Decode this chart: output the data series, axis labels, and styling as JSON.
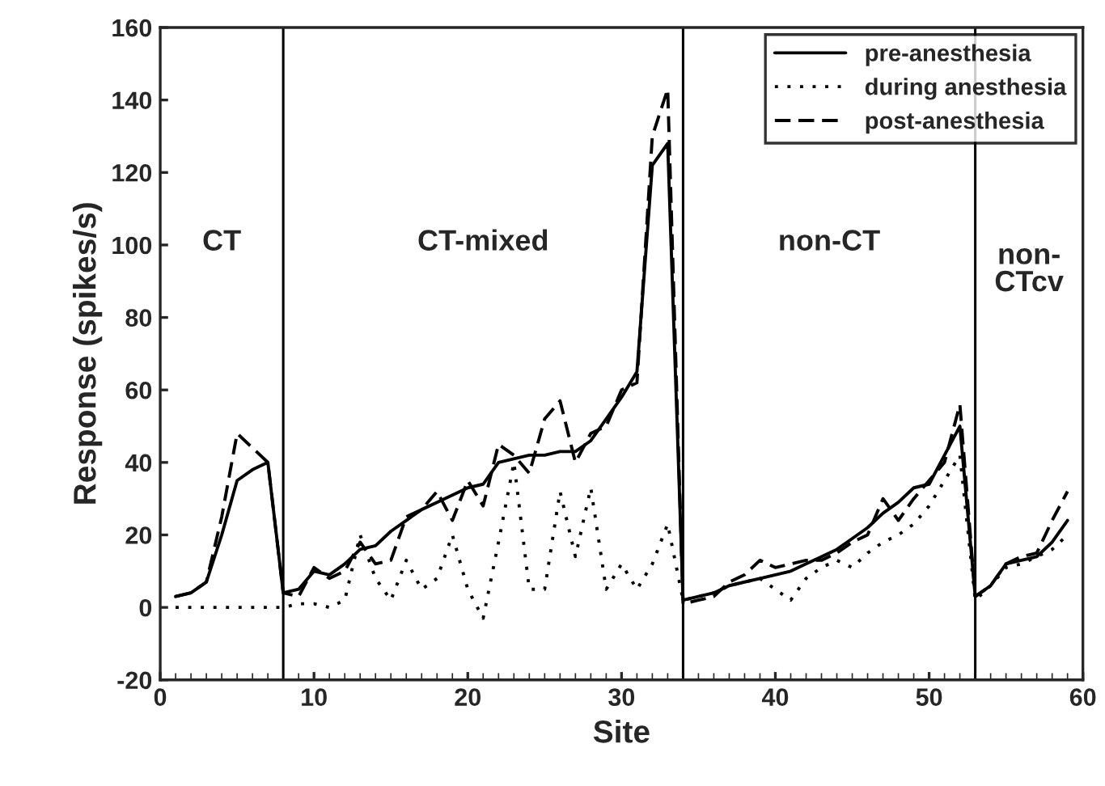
{
  "chart_data": {
    "type": "line",
    "xlabel": "Site",
    "ylabel": "Response (spikes/s)",
    "x": [
      1,
      2,
      3,
      4,
      5,
      6,
      7,
      8,
      9,
      10,
      11,
      12,
      13,
      14,
      15,
      16,
      17,
      18,
      19,
      20,
      21,
      22,
      23,
      24,
      25,
      26,
      27,
      28,
      29,
      30,
      31,
      32,
      33,
      34,
      35,
      36,
      37,
      38,
      39,
      40,
      41,
      42,
      43,
      44,
      45,
      46,
      47,
      48,
      49,
      50,
      51,
      52,
      53,
      54,
      55,
      56,
      57,
      58,
      59
    ],
    "series": [
      {
        "name": "pre-anesthesia",
        "color": "#000000",
        "line_style": "solid",
        "values": [
          3,
          4,
          7,
          20,
          35,
          38,
          40,
          4,
          5,
          10,
          9,
          12,
          16,
          17,
          21,
          24,
          27,
          29,
          31,
          33,
          34,
          40,
          41,
          42,
          42,
          43,
          43,
          46,
          52,
          58,
          65,
          122,
          128,
          2,
          3,
          4,
          6,
          7,
          8,
          9,
          10,
          12,
          14,
          16,
          19,
          22,
          26,
          29,
          33,
          34,
          42,
          50,
          3,
          6,
          12,
          13,
          14,
          18,
          24
        ]
      },
      {
        "name": "during anesthesia",
        "color": "#000000",
        "line_style": "dotted",
        "values": [
          0,
          0,
          0,
          0,
          0,
          0,
          0,
          0,
          1,
          1,
          0,
          2,
          20,
          8,
          2,
          13,
          5,
          8,
          20,
          5,
          -3,
          18,
          40,
          5,
          5,
          32,
          14,
          33,
          5,
          12,
          5,
          12,
          23,
          2,
          3,
          4,
          6,
          7,
          8,
          5,
          2,
          8,
          11,
          13,
          11,
          15,
          18,
          20,
          23,
          28,
          35,
          42,
          2,
          6,
          11,
          12,
          14,
          16,
          20
        ]
      },
      {
        "name": "post-anesthesia",
        "color": "#000000",
        "line_style": "dashed",
        "values": [
          3,
          4,
          7,
          25,
          48,
          44,
          40,
          4,
          3,
          11,
          8,
          10,
          18,
          12,
          13,
          25,
          27,
          32,
          24,
          35,
          28,
          45,
          42,
          37,
          52,
          57,
          40,
          48,
          50,
          60,
          62,
          130,
          143,
          1,
          2,
          3,
          7,
          9,
          13,
          11,
          12,
          13,
          13,
          15,
          18,
          20,
          30,
          24,
          30,
          35,
          40,
          56,
          3,
          6,
          12,
          14,
          15,
          24,
          32
        ]
      }
    ],
    "xlim": [
      0,
      60
    ],
    "xticks": [
      0,
      10,
      20,
      30,
      40,
      50,
      60
    ],
    "ylim": [
      -20,
      160
    ],
    "yticks": [
      -20,
      0,
      20,
      40,
      60,
      80,
      100,
      120,
      140,
      160
    ],
    "ref_lines": [
      {
        "axis": "x",
        "value": 8,
        "color": "#000000"
      },
      {
        "axis": "x",
        "value": 34,
        "color": "#000000"
      },
      {
        "axis": "x",
        "value": 53,
        "color": "#000000"
      }
    ],
    "annotations": [
      "CT",
      "CT-mixed",
      "non-CT",
      "non-\nCTcv"
    ],
    "grid": false,
    "legend": "top right",
    "marker": "none"
  }
}
